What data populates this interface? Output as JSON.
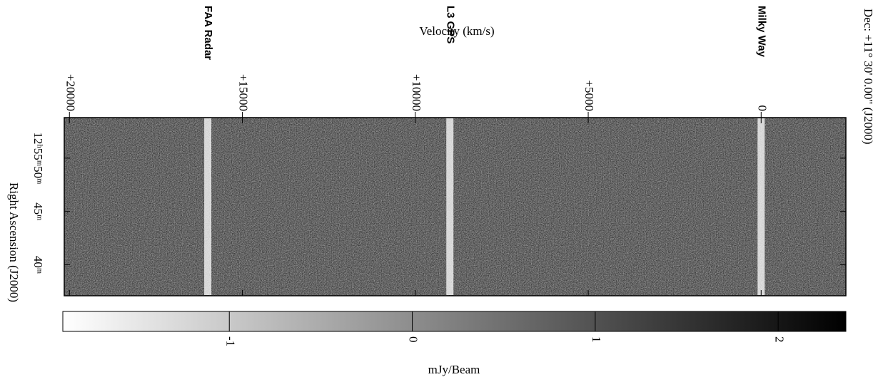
{
  "chart_data": {
    "type": "waterfall",
    "x_label": "Velocity (km/s)",
    "xlim": [
      20150,
      -2450
    ],
    "xticks": [
      {
        "value": 20000,
        "label": "+20000"
      },
      {
        "value": 15000,
        "label": "+15000"
      },
      {
        "value": 10000,
        "label": "+10000"
      },
      {
        "value": 5000,
        "label": "+5000"
      },
      0
    ],
    "y_label": "Right Ascension (J2000)",
    "ylim": [
      37.1,
      53.8
    ],
    "yticks": [
      {
        "value": 50,
        "label": "12ʰ55ᵐ50ᵐ"
      },
      {
        "value": 45,
        "label": "45ᵐ"
      },
      {
        "value": 40,
        "label": "40ᵐ"
      }
    ],
    "y2_label": "Dec: +11° 30' 0.00\" (J2000)",
    "annotations": [
      {
        "text": "FAA Radar",
        "x": 16000
      },
      {
        "text": "L3 GPS",
        "x": 9000
      },
      {
        "text": "Milky Way",
        "x": 0
      }
    ],
    "colorbar": {
      "label": "mJy/Beam",
      "clim": [
        -1.91,
        2.37
      ],
      "ticks": [
        -1,
        0,
        1,
        2
      ]
    }
  }
}
